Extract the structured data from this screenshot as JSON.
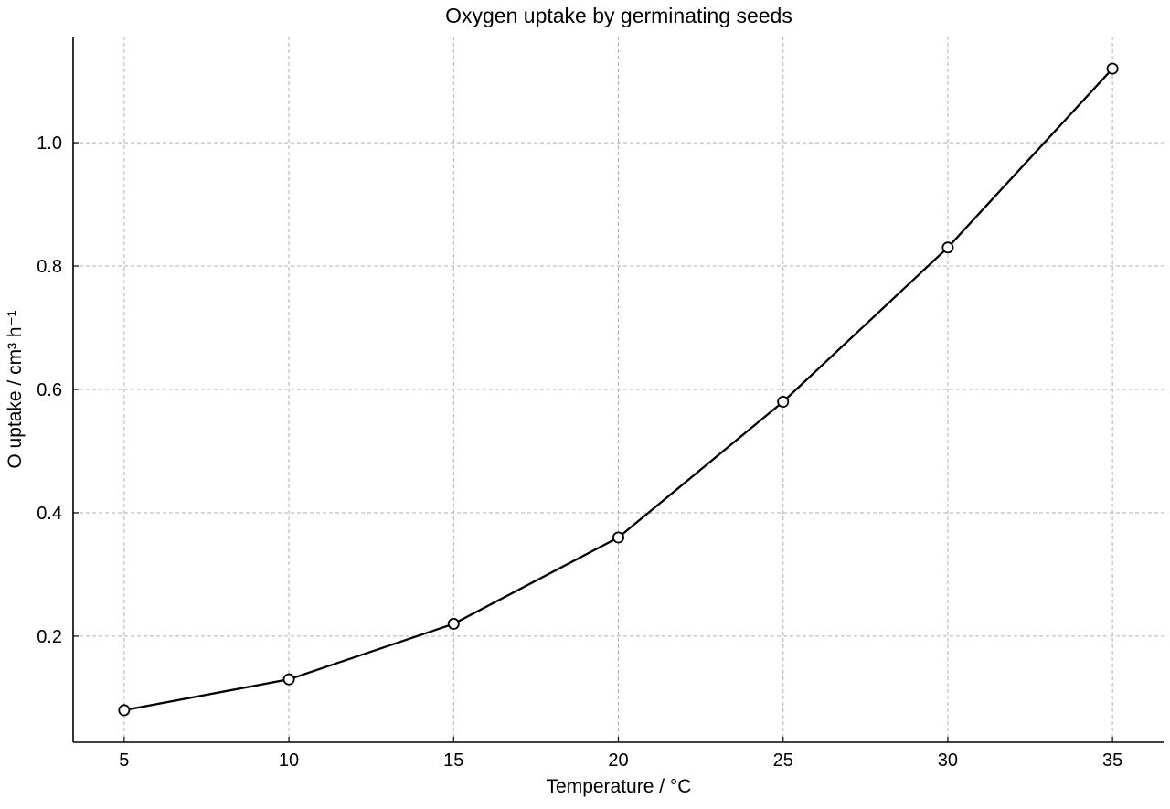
{
  "chart_data": {
    "type": "line",
    "title": "Oxygen uptake by germinating seeds",
    "xlabel": "Temperature / °C",
    "ylabel": "O  uptake / cm³ h⁻¹",
    "x": [
      5,
      10,
      15,
      20,
      25,
      30,
      35
    ],
    "series": [
      {
        "values": [
          0.08,
          0.13,
          0.22,
          0.36,
          0.58,
          0.83,
          1.12
        ],
        "color": "#000000"
      }
    ],
    "x_ticks": [
      5,
      10,
      15,
      20,
      25,
      30,
      35
    ],
    "y_ticks": [
      0.2,
      0.4,
      0.6,
      0.8,
      1.0
    ],
    "x_tick_labels": [
      "5",
      "10",
      "15",
      "20",
      "25",
      "30",
      "35"
    ],
    "y_tick_labels": [
      "0.2",
      "0.4",
      "0.6",
      "0.8",
      "1.0"
    ],
    "xlim": [
      3.45,
      36.55
    ],
    "ylim": [
      0.028,
      1.172
    ],
    "grid": true,
    "marker": "open-circle",
    "legend": null
  }
}
